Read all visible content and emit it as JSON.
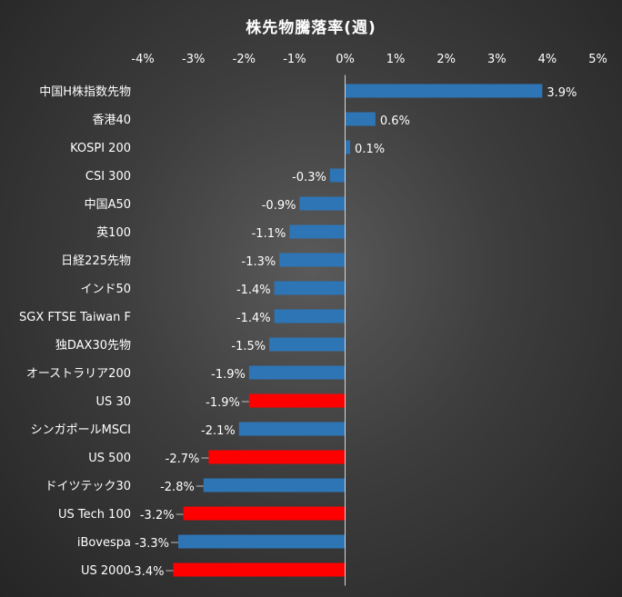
{
  "chart_data": {
    "type": "bar",
    "orientation": "horizontal",
    "title": "株先物騰落率(週)",
    "xlabel": "",
    "ylabel": "",
    "xlim": [
      -4,
      5
    ],
    "x_ticks": [
      -4,
      -3,
      -2,
      -1,
      0,
      1,
      2,
      3,
      4,
      5
    ],
    "x_tick_labels": [
      "-4%",
      "-3%",
      "-2%",
      "-1%",
      "0%",
      "1%",
      "2%",
      "3%",
      "4%",
      "5%"
    ],
    "x_axis_position": "top",
    "grid": false,
    "legend": "none",
    "categories": [
      "中国H株指数先物",
      "香港40",
      "KOSPI 200",
      "CSI 300",
      "中国A50",
      "英100",
      "日経225先物",
      "インド50",
      "SGX FTSE Taiwan F",
      "独DAX30先物",
      "オーストラリア200",
      "US 30",
      "シンガポールMSCI",
      "US 500",
      "ドイツテック30",
      "US Tech 100",
      "iBovespa",
      "US 2000"
    ],
    "values": [
      3.9,
      0.6,
      0.1,
      -0.3,
      -0.9,
      -1.1,
      -1.3,
      -1.4,
      -1.4,
      -1.5,
      -1.9,
      -1.9,
      -2.1,
      -2.7,
      -2.8,
      -3.2,
      -3.3,
      -3.4
    ],
    "data_labels": [
      "3.9%",
      "0.6%",
      "0.1%",
      "-0.3%",
      "-0.9%",
      "-1.1%",
      "-1.3%",
      "-1.4%",
      "-1.4%",
      "-1.5%",
      "-1.9%",
      "-1.9%",
      "-2.1%",
      "-2.7%",
      "-2.8%",
      "-3.2%",
      "-3.3%",
      "-3.4%"
    ],
    "highlighted": [
      "US 30",
      "US 500",
      "US Tech 100",
      "US 2000"
    ],
    "colors": {
      "bar": "#2e75b6",
      "highlight": "#ff0000",
      "text": "#ffffff",
      "axis": "#d9d9d9",
      "leader": "#bfbfbf"
    }
  }
}
